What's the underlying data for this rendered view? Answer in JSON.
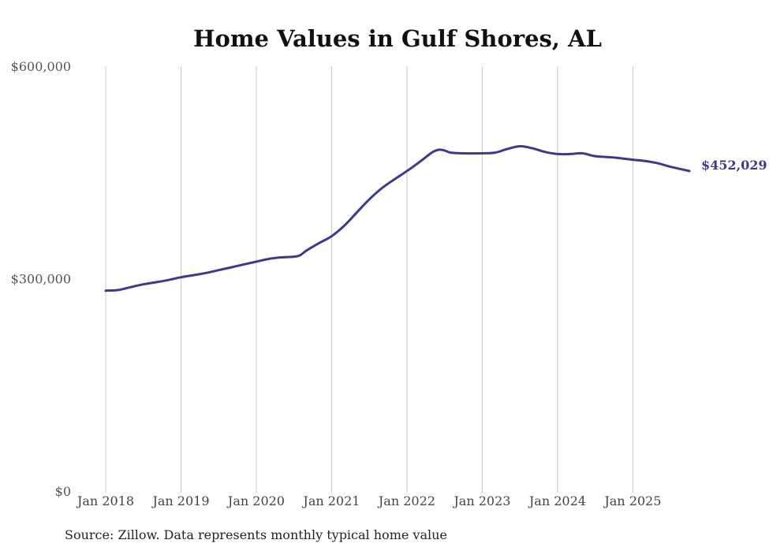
{
  "chart_data": {
    "type": "line",
    "title": "Home Values in Gulf Shores, AL",
    "xlabel": "",
    "ylabel": "",
    "ylim": [
      0,
      600000
    ],
    "y_ticks": [
      0,
      300000,
      600000
    ],
    "y_tick_labels": [
      "$0",
      "$300,000",
      "$600,000"
    ],
    "x_ticks": [
      2018,
      2019,
      2020,
      2021,
      2022,
      2023,
      2024,
      2025
    ],
    "x_tick_labels": [
      "Jan 2018",
      "Jan 2019",
      "Jan 2020",
      "Jan 2021",
      "Jan 2022",
      "Jan 2023",
      "Jan 2024",
      "Jan 2025"
    ],
    "xlim": [
      2018,
      2025.75
    ],
    "vertical_grid": true,
    "series": [
      {
        "name": "Typical home value",
        "color": "#3d3a8c",
        "x": [
          2018.0,
          2018.17,
          2018.33,
          2018.5,
          2018.67,
          2018.83,
          2019.0,
          2019.17,
          2019.33,
          2019.5,
          2019.67,
          2019.83,
          2020.0,
          2020.17,
          2020.33,
          2020.5,
          2020.58,
          2020.67,
          2020.83,
          2021.0,
          2021.17,
          2021.33,
          2021.5,
          2021.67,
          2021.83,
          2022.0,
          2022.17,
          2022.33,
          2022.42,
          2022.5,
          2022.58,
          2022.75,
          2023.0,
          2023.17,
          2023.33,
          2023.5,
          2023.67,
          2023.83,
          2024.0,
          2024.17,
          2024.33,
          2024.5,
          2024.75,
          2025.0,
          2025.17,
          2025.33,
          2025.5,
          2025.75
        ],
        "values": [
          283000,
          284000,
          288000,
          292000,
          295000,
          298000,
          302000,
          305000,
          308000,
          312000,
          316000,
          320000,
          324000,
          328000,
          330000,
          331000,
          333000,
          340000,
          350000,
          360000,
          375000,
          393000,
          412000,
          428000,
          440000,
          452000,
          465000,
          478000,
          482000,
          481000,
          478000,
          477000,
          477000,
          478000,
          483000,
          487000,
          484000,
          479000,
          476000,
          476000,
          477000,
          473000,
          471000,
          468000,
          466000,
          463000,
          458000,
          452029
        ]
      }
    ],
    "end_label": "$452,029",
    "source": "Source: Zillow. Data represents monthly typical home value"
  }
}
